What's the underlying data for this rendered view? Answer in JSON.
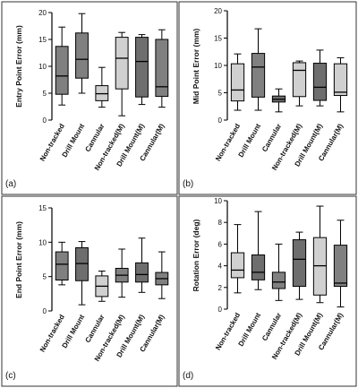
{
  "colors": {
    "dark": "#6e6e6e",
    "medium": "#808080",
    "light": "#d0d0d0",
    "stroke": "#000000",
    "frame": "#333333"
  },
  "chart_data": [
    {
      "type": "box",
      "panel_label": "(a)",
      "ylabel": "Entry Point Error (mm)",
      "ylim": [
        0,
        20
      ],
      "yticks": [
        0,
        5,
        10,
        15,
        20
      ],
      "categories": [
        "Non-tracked",
        "Drill Mount",
        "Cannular",
        "Non-tracked(M)",
        "Drill Mount(M)",
        "Cannular(M)"
      ],
      "fills": [
        "medium",
        "medium",
        "light",
        "light",
        "dark",
        "medium"
      ],
      "boxes": [
        {
          "min": 2.8,
          "q1": 4.8,
          "median": 8.2,
          "q3": 13.7,
          "max": 17.3
        },
        {
          "min": 5.0,
          "q1": 7.8,
          "median": 11.3,
          "q3": 16.2,
          "max": 19.8
        },
        {
          "min": 2.4,
          "q1": 3.6,
          "median": 4.9,
          "q3": 6.4,
          "max": 9.8
        },
        {
          "min": 0.8,
          "q1": 5.8,
          "median": 11.5,
          "q3": 15.4,
          "max": 16.3
        },
        {
          "min": 2.9,
          "q1": 4.3,
          "median": 10.9,
          "q3": 15.4,
          "max": 15.9
        },
        {
          "min": 2.4,
          "q1": 4.4,
          "median": 6.2,
          "q3": 15.0,
          "max": 16.8
        }
      ]
    },
    {
      "type": "box",
      "panel_label": "(b)",
      "ylabel": "Mid Point Error (mm)",
      "ylim": [
        0,
        20
      ],
      "yticks": [
        0,
        5,
        10,
        15,
        20
      ],
      "categories": [
        "Non-tracked",
        "Drill Mount",
        "Cannular",
        "Non-tracked(M)",
        "Drill Mount(M)",
        "Cannular(M)"
      ],
      "fills": [
        "light",
        "medium",
        "dark",
        "light",
        "dark",
        "light"
      ],
      "boxes": [
        {
          "min": 1.8,
          "q1": 3.5,
          "median": 5.5,
          "q3": 10.3,
          "max": 12.1
        },
        {
          "min": 1.8,
          "q1": 4.2,
          "median": 9.7,
          "q3": 12.2,
          "max": 16.7
        },
        {
          "min": 1.5,
          "q1": 3.3,
          "median": 3.8,
          "q3": 4.4,
          "max": 5.7
        },
        {
          "min": 2.6,
          "q1": 4.3,
          "median": 9.1,
          "q3": 10.5,
          "max": 10.8
        },
        {
          "min": 2.6,
          "q1": 3.6,
          "median": 6.0,
          "q3": 10.4,
          "max": 12.8
        },
        {
          "min": 1.5,
          "q1": 4.5,
          "median": 5.1,
          "q3": 10.3,
          "max": 11.4
        }
      ]
    },
    {
      "type": "box",
      "panel_label": "(c)",
      "ylabel": "End Point Error (mm)",
      "ylim": [
        0,
        15
      ],
      "yticks": [
        0,
        5,
        10,
        15
      ],
      "categories": [
        "Non-tracked",
        "Drill Mount",
        "Cannular",
        "Non-tracked(M)",
        "Drill Mount(M)",
        "Cannular(M)"
      ],
      "fills": [
        "medium",
        "dark",
        "light",
        "medium",
        "dark",
        "medium"
      ],
      "boxes": [
        {
          "min": 3.8,
          "q1": 4.5,
          "median": 6.8,
          "q3": 8.6,
          "max": 10.0
        },
        {
          "min": 0.9,
          "q1": 4.4,
          "median": 6.9,
          "q3": 9.2,
          "max": 10.1
        },
        {
          "min": 1.4,
          "q1": 2.1,
          "median": 3.6,
          "q3": 5.1,
          "max": 5.8
        },
        {
          "min": 2.0,
          "q1": 4.2,
          "median": 5.2,
          "q3": 6.2,
          "max": 9.0
        },
        {
          "min": 2.7,
          "q1": 4.2,
          "median": 5.3,
          "q3": 7.0,
          "max": 10.6
        },
        {
          "min": 1.8,
          "q1": 3.8,
          "median": 4.7,
          "q3": 5.6,
          "max": 8.6
        }
      ]
    },
    {
      "type": "box",
      "panel_label": "(d)",
      "ylabel": "Rotation Error (deg)",
      "ylim": [
        0,
        10
      ],
      "yticks": [
        0,
        2,
        4,
        6,
        8,
        10
      ],
      "categories": [
        "Non-tracked",
        "Drill Mount",
        "Cannular",
        "Non-tracked(M)",
        "Drill Mount(M)",
        "Cannular(M)"
      ],
      "fills": [
        "light",
        "dark",
        "medium",
        "dark",
        "light",
        "medium"
      ],
      "boxes": [
        {
          "min": 1.5,
          "q1": 2.9,
          "median": 3.6,
          "q3": 5.2,
          "max": 7.8
        },
        {
          "min": 1.8,
          "q1": 2.7,
          "median": 3.4,
          "q3": 5.0,
          "max": 9.0
        },
        {
          "min": 0.8,
          "q1": 1.9,
          "median": 2.5,
          "q3": 3.4,
          "max": 6.0
        },
        {
          "min": 0.9,
          "q1": 2.1,
          "median": 4.6,
          "q3": 6.4,
          "max": 7.1
        },
        {
          "min": 0.6,
          "q1": 1.3,
          "median": 4.0,
          "q3": 6.6,
          "max": 9.5
        },
        {
          "min": 0.2,
          "q1": 2.1,
          "median": 2.4,
          "q3": 5.9,
          "max": 8.2
        }
      ]
    }
  ]
}
